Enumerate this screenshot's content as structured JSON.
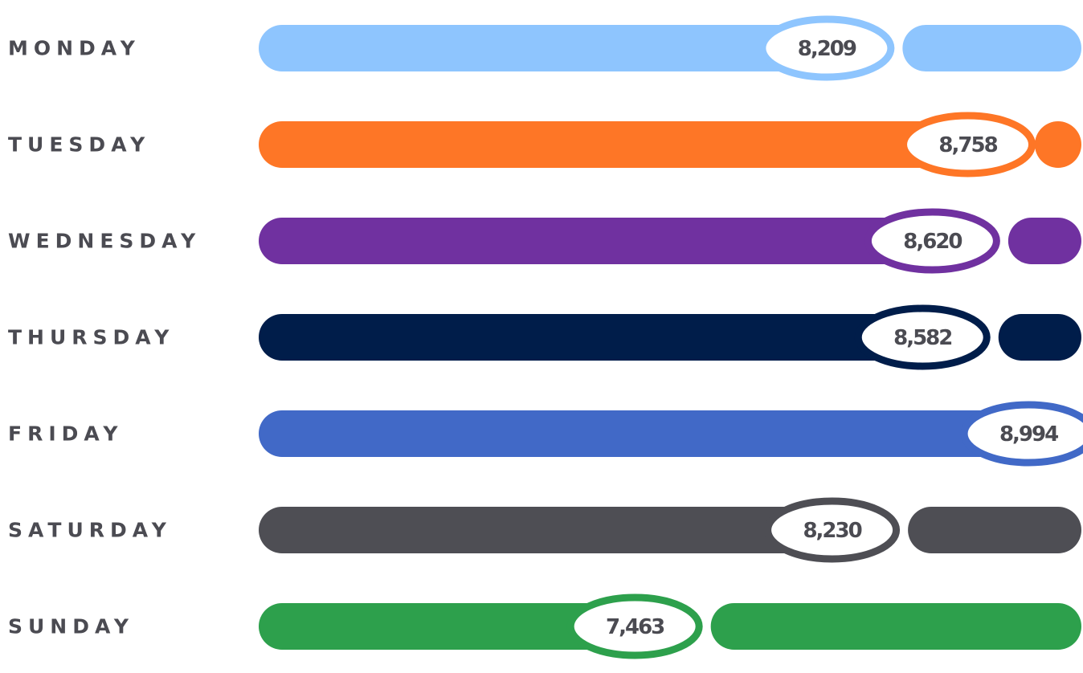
{
  "chart_data": {
    "type": "bar",
    "categories": [
      "MONDAY",
      "TUESDAY",
      "WEDNESDAY",
      "THURSDAY",
      "FRIDAY",
      "SATURDAY",
      "SUNDAY"
    ],
    "values": [
      8209,
      8758,
      8620,
      8582,
      8994,
      8230,
      7463
    ],
    "value_labels": [
      "8,209",
      "8,758",
      "8,620",
      "8,582",
      "8,994",
      "8,230",
      "7,463"
    ],
    "colors": [
      "#8ec5fe",
      "#fe7626",
      "#7031a0",
      "#001d4a",
      "#4169c7",
      "#4e4e54",
      "#2da04c"
    ],
    "title": "",
    "xlabel": "",
    "ylabel": "",
    "xlim": [
      6000,
      9200
    ],
    "grid": false,
    "legend": "none"
  }
}
